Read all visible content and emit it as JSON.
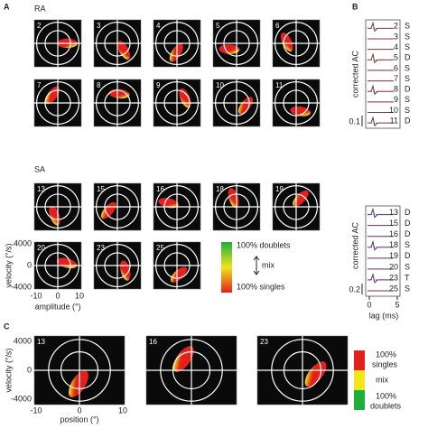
{
  "panel_a": {
    "label": "A",
    "ra_label": "RA",
    "sa_label": "SA",
    "ra_units": [
      "2",
      "3",
      "4",
      "5",
      "6",
      "7",
      "8",
      "9",
      "10",
      "11"
    ],
    "sa_units": [
      "13",
      "15",
      "16",
      "18",
      "19",
      "20",
      "23",
      "25"
    ],
    "y_axis_label": "velocity (°/s)",
    "y_ticks": [
      "4000",
      "0",
      "-4000"
    ],
    "x_axis_label": "amplitude (°)",
    "x_ticks": [
      "-10",
      "0",
      "10"
    ],
    "legend": {
      "top": "100% doublets",
      "mid": "mix",
      "bottom": "100% singles"
    }
  },
  "panel_b": {
    "label": "B",
    "y_axis_label": "corrected AC",
    "ra_units": [
      "2",
      "3",
      "4",
      "5",
      "6",
      "7",
      "8",
      "9",
      "10",
      "11"
    ],
    "ra_types": [
      "S",
      "S",
      "S",
      "D",
      "S",
      "S",
      "D",
      "S",
      "S",
      "D"
    ],
    "ra_scale": "0.1",
    "sa_units": [
      "13",
      "15",
      "16",
      "18",
      "19",
      "20",
      "23",
      "25"
    ],
    "sa_types": [
      "D",
      "D",
      "D",
      "S",
      "D",
      "S",
      "T",
      "S"
    ],
    "sa_scale": "0.2",
    "x_ticks": [
      "0",
      "5"
    ],
    "x_axis_label": "lag (ms)"
  },
  "panel_c": {
    "label": "C",
    "units": [
      "13",
      "16",
      "23"
    ],
    "y_axis_label": "velocity (°/s)",
    "y_ticks": [
      "4000",
      "0",
      "-4000"
    ],
    "x_axis_label": "position (°)",
    "x_ticks": [
      "-10",
      "0",
      "10"
    ],
    "legend": {
      "top_1": "100%",
      "top_2": "singles",
      "mid": "mix",
      "bottom_1": "100%",
      "bottom_2": "doublets"
    }
  }
}
